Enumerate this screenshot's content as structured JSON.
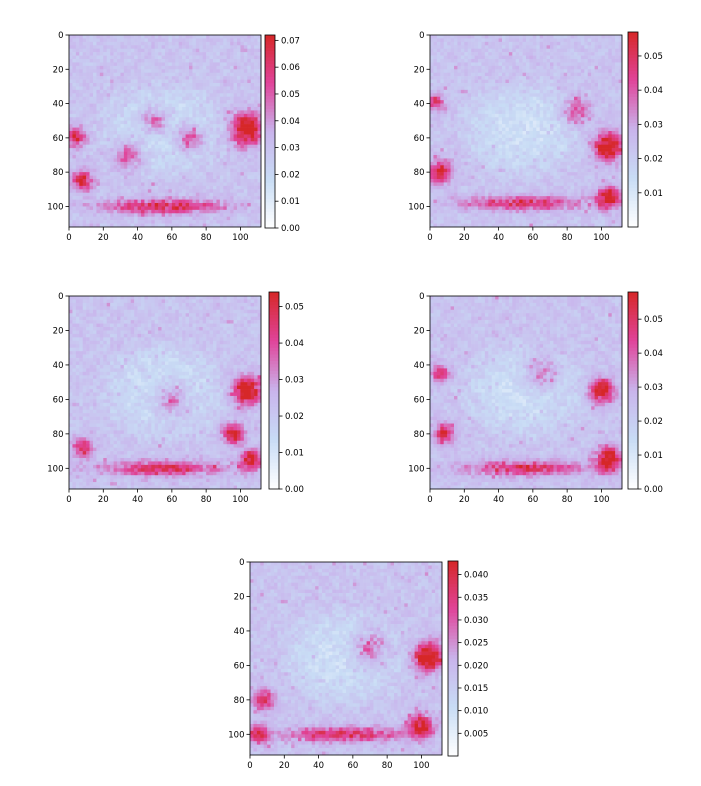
{
  "chart_data": [
    {
      "type": "heatmap",
      "title": "",
      "xlabel": "",
      "ylabel": "",
      "xlim": [
        0,
        112
      ],
      "ylim": [
        112,
        0
      ],
      "x_ticks": [
        "0",
        "20",
        "40",
        "60",
        "80",
        "100"
      ],
      "y_ticks": [
        "0",
        "20",
        "40",
        "60",
        "80",
        "100"
      ],
      "colorbar": {
        "min": 0.0,
        "max": 0.072,
        "ticks": [
          "0.00",
          "0.01",
          "0.02",
          "0.03",
          "0.04",
          "0.05",
          "0.06",
          "0.07"
        ]
      },
      "colormap": [
        "#ffffff",
        "#c8dcf5",
        "#c9b4ec",
        "#e0449a",
        "#d62728"
      ],
      "hotspots": [
        [
          104,
          55,
          9,
          0.85
        ],
        [
          4,
          60,
          5,
          0.7
        ],
        [
          8,
          85,
          6,
          0.65
        ],
        [
          55,
          100,
          35,
          0.6
        ],
        [
          50,
          50,
          8,
          0.45
        ],
        [
          35,
          70,
          8,
          0.5
        ],
        [
          70,
          60,
          8,
          0.5
        ]
      ]
    },
    {
      "type": "heatmap",
      "title": "",
      "xlabel": "",
      "ylabel": "",
      "xlim": [
        0,
        112
      ],
      "ylim": [
        112,
        0
      ],
      "x_ticks": [
        "0",
        "20",
        "40",
        "60",
        "80",
        "100"
      ],
      "y_ticks": [
        "0",
        "20",
        "40",
        "60",
        "80",
        "100"
      ],
      "colorbar": {
        "min": 0.0,
        "max": 0.057,
        "ticks": [
          "0.01",
          "0.02",
          "0.03",
          "0.04",
          "0.05"
        ]
      },
      "colormap": [
        "#ffffff",
        "#c8dcf5",
        "#c9b4ec",
        "#e0449a",
        "#d62728"
      ],
      "hotspots": [
        [
          104,
          65,
          8,
          0.9
        ],
        [
          104,
          95,
          6,
          0.85
        ],
        [
          6,
          80,
          7,
          0.6
        ],
        [
          55,
          98,
          35,
          0.55
        ],
        [
          85,
          45,
          8,
          0.45
        ],
        [
          4,
          40,
          5,
          0.5
        ]
      ]
    },
    {
      "type": "heatmap",
      "title": "",
      "xlabel": "",
      "ylabel": "",
      "xlim": [
        0,
        112
      ],
      "ylim": [
        112,
        0
      ],
      "x_ticks": [
        "0",
        "20",
        "40",
        "60",
        "80",
        "100"
      ],
      "y_ticks": [
        "0",
        "20",
        "40",
        "60",
        "80",
        "100"
      ],
      "colorbar": {
        "min": 0.0,
        "max": 0.054,
        "ticks": [
          "0.00",
          "0.01",
          "0.02",
          "0.03",
          "0.04",
          "0.05"
        ]
      },
      "colormap": [
        "#ffffff",
        "#c8dcf5",
        "#c9b4ec",
        "#e0449a",
        "#d62728"
      ],
      "hotspots": [
        [
          104,
          55,
          8,
          0.9
        ],
        [
          96,
          80,
          6,
          0.75
        ],
        [
          106,
          95,
          6,
          0.7
        ],
        [
          55,
          100,
          35,
          0.55
        ],
        [
          8,
          88,
          6,
          0.55
        ],
        [
          60,
          60,
          10,
          0.4
        ]
      ]
    },
    {
      "type": "heatmap",
      "title": "",
      "xlabel": "",
      "ylabel": "",
      "xlim": [
        0,
        112
      ],
      "ylim": [
        112,
        0
      ],
      "x_ticks": [
        "0",
        "20",
        "40",
        "60",
        "80",
        "100"
      ],
      "y_ticks": [
        "0",
        "20",
        "40",
        "60",
        "80",
        "100"
      ],
      "colorbar": {
        "min": 0.0,
        "max": 0.058,
        "ticks": [
          "0.00",
          "0.01",
          "0.02",
          "0.03",
          "0.04",
          "0.05"
        ]
      },
      "colormap": [
        "#ffffff",
        "#c8dcf5",
        "#c9b4ec",
        "#e0449a",
        "#d62728"
      ],
      "hotspots": [
        [
          104,
          95,
          7,
          0.9
        ],
        [
          100,
          55,
          7,
          0.8
        ],
        [
          8,
          80,
          6,
          0.6
        ],
        [
          55,
          100,
          35,
          0.55
        ],
        [
          6,
          45,
          5,
          0.55
        ],
        [
          65,
          45,
          10,
          0.4
        ]
      ]
    },
    {
      "type": "heatmap",
      "title": "",
      "xlabel": "",
      "ylabel": "",
      "xlim": [
        0,
        112
      ],
      "ylim": [
        112,
        0
      ],
      "x_ticks": [
        "0",
        "20",
        "40",
        "60",
        "80",
        "100"
      ],
      "y_ticks": [
        "0",
        "20",
        "40",
        "60",
        "80",
        "100"
      ],
      "colorbar": {
        "min": 0.0,
        "max": 0.043,
        "ticks": [
          "0.005",
          "0.010",
          "0.015",
          "0.020",
          "0.025",
          "0.030",
          "0.035",
          "0.040"
        ]
      },
      "colormap": [
        "#ffffff",
        "#c8dcf5",
        "#c9b4ec",
        "#e0449a",
        "#d62728"
      ],
      "hotspots": [
        [
          104,
          55,
          8,
          0.95
        ],
        [
          100,
          95,
          7,
          0.7
        ],
        [
          8,
          80,
          6,
          0.6
        ],
        [
          55,
          100,
          35,
          0.55
        ],
        [
          70,
          50,
          10,
          0.45
        ],
        [
          5,
          100,
          6,
          0.6
        ]
      ]
    }
  ]
}
